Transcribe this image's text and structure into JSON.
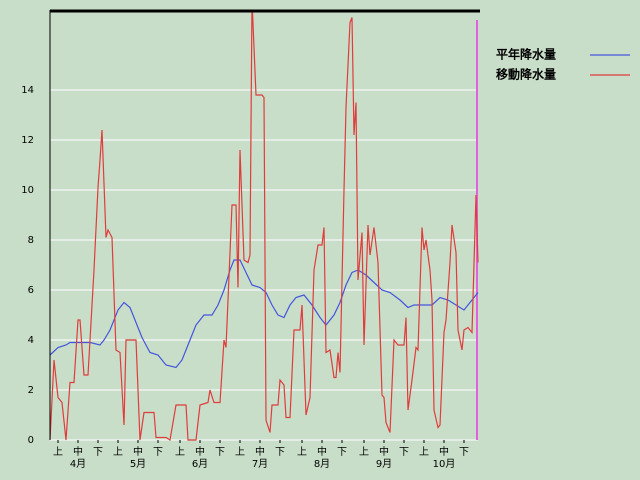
{
  "chart_data": {
    "type": "line",
    "xlim": [
      0,
      214
    ],
    "ylim": [
      0,
      17.2
    ],
    "yticks": [
      0,
      2,
      4,
      6,
      8,
      10,
      12,
      14
    ],
    "xticks": [
      {
        "value": 4,
        "label": "上"
      },
      {
        "value": 14,
        "label": "中"
      },
      {
        "value": 24,
        "label": "下"
      },
      {
        "value": 34,
        "label": "上"
      },
      {
        "value": 44,
        "label": "中"
      },
      {
        "value": 54,
        "label": "下"
      },
      {
        "value": 65,
        "label": "上"
      },
      {
        "value": 75,
        "label": "中"
      },
      {
        "value": 85,
        "label": "下"
      },
      {
        "value": 95,
        "label": "上"
      },
      {
        "value": 105,
        "label": "中"
      },
      {
        "value": 115,
        "label": "下"
      },
      {
        "value": 126,
        "label": "上"
      },
      {
        "value": 136,
        "label": "中"
      },
      {
        "value": 146,
        "label": "下"
      },
      {
        "value": 157,
        "label": "上"
      },
      {
        "value": 167,
        "label": "中"
      },
      {
        "value": 177,
        "label": "下"
      },
      {
        "value": 187,
        "label": "上"
      },
      {
        "value": 197,
        "label": "中"
      },
      {
        "value": 207,
        "label": "下"
      }
    ],
    "month_labels": [
      {
        "value": 14,
        "label": "4月"
      },
      {
        "value": 44,
        "label": "5月"
      },
      {
        "value": 75,
        "label": "6月"
      },
      {
        "value": 105,
        "label": "7月"
      },
      {
        "value": 136,
        "label": "8月"
      },
      {
        "value": 167,
        "label": "9月"
      },
      {
        "value": 197,
        "label": "10月"
      }
    ],
    "grid": true,
    "series": [
      {
        "name": "平年降水量",
        "color": "#4455dd",
        "x": [
          0,
          4,
          8,
          10,
          20,
          25,
          27,
          30,
          34,
          37,
          40,
          43,
          46,
          50,
          54,
          58,
          63,
          66,
          70,
          73,
          77,
          81,
          84,
          87,
          90,
          92,
          95,
          98,
          101,
          105,
          108,
          111,
          114,
          117,
          120,
          123,
          127,
          131,
          135,
          138,
          142,
          145,
          148,
          151,
          154,
          158,
          162,
          166,
          170,
          175,
          179,
          182,
          191,
          195,
          199,
          203,
          207,
          210,
          214
        ],
        "values": [
          3.4,
          3.7,
          3.8,
          3.9,
          3.9,
          3.8,
          4.0,
          4.4,
          5.2,
          5.5,
          5.3,
          4.7,
          4.1,
          3.5,
          3.4,
          3.0,
          2.9,
          3.2,
          4.0,
          4.6,
          5.0,
          5.0,
          5.4,
          6.0,
          6.8,
          7.2,
          7.2,
          6.7,
          6.2,
          6.1,
          5.9,
          5.4,
          5.0,
          4.9,
          5.4,
          5.7,
          5.8,
          5.4,
          4.9,
          4.6,
          5.0,
          5.5,
          6.2,
          6.7,
          6.8,
          6.6,
          6.3,
          6.0,
          5.9,
          5.6,
          5.3,
          5.4,
          5.4,
          5.7,
          5.6,
          5.4,
          5.2,
          5.5,
          5.9
        ]
      },
      {
        "name": "移動降水量",
        "color": "#e03c3c",
        "x": [
          0,
          2,
          4,
          6,
          8,
          10,
          12,
          14,
          15,
          17,
          19,
          22,
          24,
          25,
          26,
          28,
          29,
          31,
          33,
          35,
          37,
          38,
          43,
          45,
          47,
          52,
          53,
          58,
          60,
          63,
          68,
          69,
          73,
          75,
          79,
          80,
          82,
          85,
          87,
          88,
          91,
          93,
          94,
          95,
          97,
          99,
          100,
          101,
          103,
          106,
          107,
          108,
          110,
          111,
          114,
          115,
          117,
          118,
          120,
          122,
          125,
          126,
          128,
          130,
          132,
          134,
          136,
          137,
          138,
          140,
          142,
          143,
          144,
          145,
          147,
          148,
          150,
          151,
          152,
          153,
          154,
          156,
          157,
          159,
          160,
          162,
          164,
          166,
          167,
          168,
          170,
          172,
          174,
          177,
          178,
          179,
          181,
          183,
          184,
          186,
          187,
          188,
          190,
          191,
          192,
          194,
          195,
          197,
          198,
          200,
          201,
          203,
          204,
          206,
          207,
          209,
          211,
          213,
          214
        ],
        "values": [
          0,
          3.2,
          1.7,
          1.5,
          0,
          2.3,
          2.3,
          4.8,
          4.8,
          2.6,
          2.6,
          6.8,
          10.1,
          11.2,
          12.4,
          8.1,
          8.4,
          8.1,
          3.6,
          3.5,
          0.6,
          4.0,
          4.0,
          0,
          1.1,
          1.1,
          0.1,
          0.1,
          0,
          1.4,
          1.4,
          0,
          0,
          1.4,
          1.5,
          2.0,
          1.5,
          1.5,
          4.0,
          3.7,
          9.4,
          9.4,
          6.1,
          11.6,
          7.2,
          7.1,
          7.4,
          17.6,
          13.8,
          13.8,
          13.7,
          0.8,
          0.3,
          1.4,
          1.4,
          2.4,
          2.2,
          0.9,
          0.9,
          4.4,
          4.4,
          5.4,
          1.0,
          1.7,
          6.8,
          7.8,
          7.8,
          8.5,
          3.5,
          3.6,
          2.5,
          2.5,
          3.5,
          2.7,
          10.0,
          13.3,
          16.7,
          16.9,
          12.2,
          13.5,
          6.4,
          8.3,
          3.8,
          8.6,
          7.4,
          8.5,
          7.1,
          1.8,
          1.7,
          0.7,
          0.3,
          4.0,
          3.8,
          3.8,
          4.9,
          1.2,
          2.4,
          3.7,
          3.6,
          8.5,
          7.6,
          8.0,
          6.8,
          5.6,
          1.2,
          0.5,
          0.6,
          4.3,
          4.8,
          7.1,
          8.6,
          7.5,
          4.4,
          3.6,
          4.4,
          4.5,
          4.3,
          9.8,
          7.1
        ]
      }
    ]
  }
}
